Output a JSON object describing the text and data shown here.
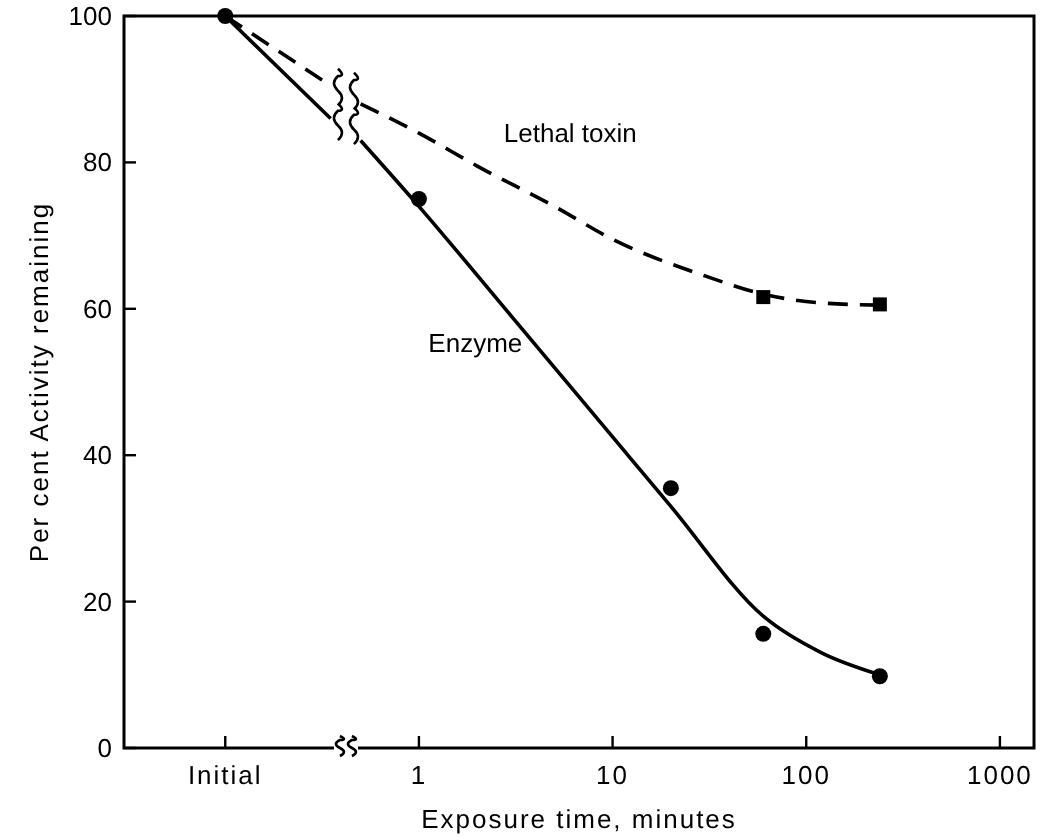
{
  "chart_data": {
    "type": "line",
    "xlabel": "Exposure time, minutes",
    "ylabel": "Per cent Activity remaining",
    "log": "x",
    "xlim": [
      0.03,
      1500
    ],
    "xticks": [
      {
        "value": 0.1,
        "label": "Initial"
      },
      1,
      10,
      100,
      1000
    ],
    "ylim": [
      0,
      100
    ],
    "yticks": [
      0,
      20,
      40,
      60,
      80,
      100
    ],
    "grid": false,
    "series": [
      {
        "name": "Lethal toxin",
        "color": "#000000",
        "line_style": "dashed",
        "marker": "none",
        "x": [
          0.1,
          0.35,
          0.42,
          0.5,
          1,
          2,
          5,
          10,
          30,
          60,
          120,
          240
        ],
        "values": [
          100,
          90.5,
          null,
          88,
          84,
          79.5,
          74,
          69.5,
          64.5,
          62,
          60.8,
          60.5
        ]
      },
      {
        "name": "Enzyme",
        "color": "#000000",
        "line_style": "solid",
        "marker": "none",
        "x": [
          0.1,
          0.35,
          0.42,
          0.5,
          1,
          3,
          10,
          20,
          60,
          120,
          240
        ],
        "values": [
          100,
          86,
          null,
          83,
          74,
          59,
          42.5,
          33,
          18,
          13,
          10
        ]
      },
      {
        "type": "scatter",
        "color": "#000000",
        "marker": "circle",
        "x": [
          0.1,
          1,
          20,
          60,
          240
        ],
        "values": [
          100,
          75,
          35.5,
          15.6,
          9.8
        ]
      },
      {
        "type": "scatter",
        "color": "#000000",
        "marker": "square",
        "x": [
          60,
          240
        ],
        "values": [
          61.6,
          60.6
        ]
      }
    ]
  }
}
